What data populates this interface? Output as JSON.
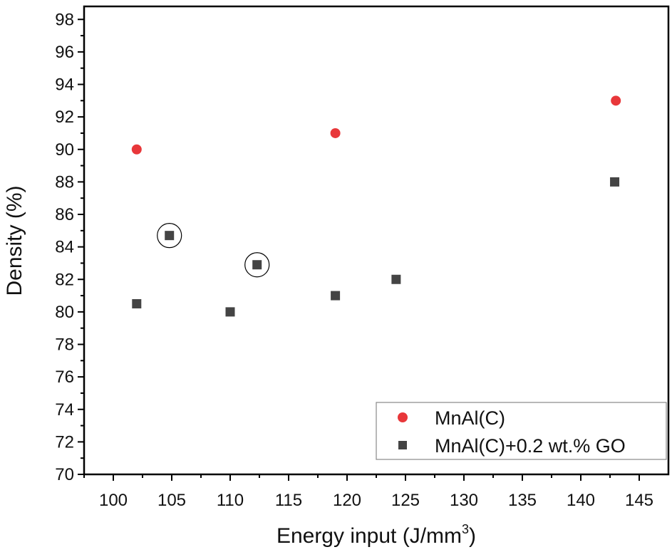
{
  "chart_data": {
    "type": "scatter",
    "title": "",
    "xlabel": "Energy input (J/mm",
    "xlabel_sup": "3",
    "xlabel_end": ")",
    "ylabel": "Density (%)",
    "xlim": [
      97.5,
      147.5
    ],
    "ylim": [
      70,
      98.8
    ],
    "xticks": [
      100,
      105,
      110,
      115,
      120,
      125,
      130,
      135,
      140,
      145
    ],
    "yticks": [
      70,
      72,
      74,
      76,
      78,
      80,
      82,
      84,
      86,
      88,
      90,
      92,
      94,
      96,
      98
    ],
    "grid": false,
    "legend_position": "bottom-right",
    "series": [
      {
        "name": "MnAl(C)",
        "marker": "circle",
        "color": "#e8373a",
        "points": [
          [
            102,
            90
          ],
          [
            119,
            91
          ],
          [
            143,
            93
          ]
        ]
      },
      {
        "name": "MnAl(C)+0.2 wt.% GO",
        "marker": "square",
        "color": "#444444",
        "points": [
          [
            102,
            80.5
          ],
          [
            104.8,
            84.7
          ],
          [
            110,
            80
          ],
          [
            112.3,
            82.9
          ],
          [
            119,
            81
          ],
          [
            124.2,
            82
          ],
          [
            142.9,
            88
          ]
        ]
      }
    ],
    "annotations": [
      {
        "type": "circle-highlight",
        "point": [
          104.8,
          84.7
        ]
      },
      {
        "type": "circle-highlight",
        "point": [
          112.3,
          82.9
        ]
      }
    ]
  }
}
